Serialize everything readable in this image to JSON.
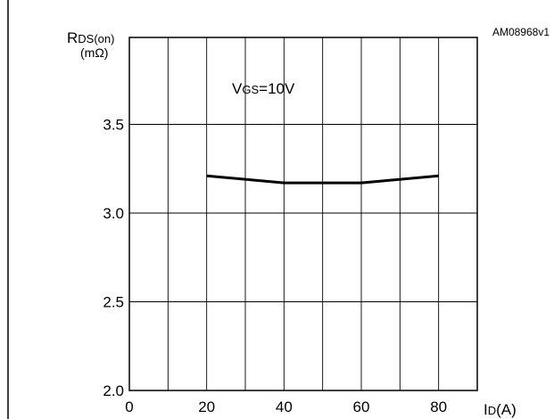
{
  "chart_data": {
    "type": "line",
    "figure_code": "AM08968v1",
    "ylabel": {
      "main": "R",
      "sub": "DS(on)",
      "unit": "(mΩ)"
    },
    "xlabel": {
      "main": "I",
      "sub": "D",
      "unit": "(A)"
    },
    "annotation": {
      "main": "V",
      "sub": "GS",
      "rest": "=10V"
    },
    "xlim": [
      0,
      90
    ],
    "ylim": [
      2.0,
      3.99
    ],
    "x_grid": [
      0,
      10,
      20,
      30,
      40,
      50,
      60,
      70,
      80,
      90
    ],
    "y_grid": [
      2.0,
      2.5,
      3.0,
      3.5
    ],
    "x_ticks": [
      {
        "value": 0,
        "label": "0"
      },
      {
        "value": 20,
        "label": "20"
      },
      {
        "value": 40,
        "label": "40"
      },
      {
        "value": 60,
        "label": "60"
      },
      {
        "value": 80,
        "label": "80"
      }
    ],
    "y_ticks": [
      {
        "value": 2.0,
        "label": "2.0"
      },
      {
        "value": 2.5,
        "label": "2.5"
      },
      {
        "value": 3.0,
        "label": "3.0"
      },
      {
        "value": 3.5,
        "label": "3.5"
      }
    ],
    "grid": true,
    "series": [
      {
        "color": "#000000",
        "x": [
          20,
          40,
          60,
          80
        ],
        "y": [
          3.21,
          3.17,
          3.17,
          3.21
        ]
      }
    ]
  }
}
